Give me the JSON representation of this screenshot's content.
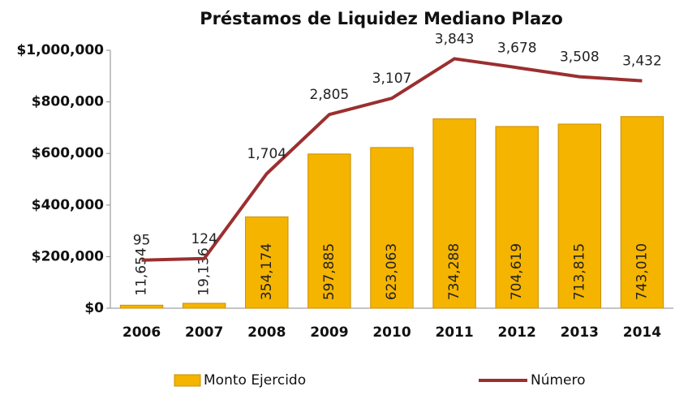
{
  "chart_data": {
    "type": "bar",
    "title": "Préstamos de Liquidez Mediano Plazo",
    "categories": [
      "2006",
      "2007",
      "2008",
      "2009",
      "2010",
      "2011",
      "2012",
      "2013",
      "2014"
    ],
    "series": [
      {
        "name": "Monto Ejercido",
        "type": "bar",
        "color": "#f5b400",
        "values": [
          11654,
          19136,
          354174,
          597885,
          623063,
          734288,
          704619,
          713815,
          743010
        ],
        "value_labels": [
          "11,654",
          "19,136",
          "354,174",
          "597,885",
          "623,063",
          "734,288",
          "704,619",
          "713,815",
          "743,010"
        ]
      },
      {
        "name": "Número",
        "type": "line",
        "axis": "y2",
        "color": "#9b2f2f",
        "values": [
          95,
          124,
          1704,
          2805,
          3107,
          3843,
          3678,
          3508,
          3432
        ],
        "value_labels": [
          "95",
          "124",
          "1,704",
          "2,805",
          "3,107",
          "3,843",
          "3,678",
          "3,508",
          "3,432"
        ]
      }
    ],
    "ylim": [
      0,
      1000000
    ],
    "yticks": [
      {
        "value": 0,
        "label": "$0"
      },
      {
        "value": 200000,
        "label": "$200,000"
      },
      {
        "value": 400000,
        "label": "$400,000"
      },
      {
        "value": 600000,
        "label": "$600,000"
      },
      {
        "value": 800000,
        "label": "$800,000"
      },
      {
        "value": 1000000,
        "label": "$1,000,000"
      }
    ],
    "y2lim": [
      -800,
      4000
    ],
    "legend": "bottom"
  }
}
